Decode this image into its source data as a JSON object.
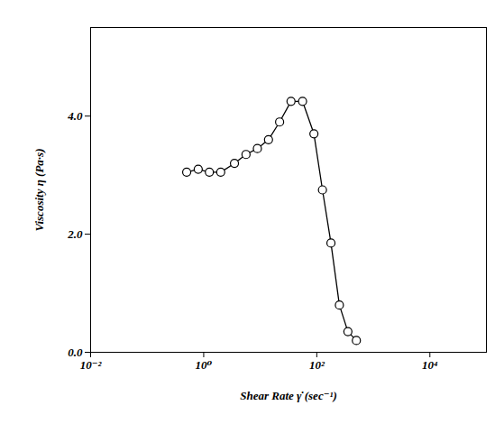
{
  "chart_data": {
    "type": "line",
    "x_label": "Shear Rate γ̇ (sec⁻¹)",
    "y_label": "Viscosity η (Pa·s)",
    "log": "x",
    "xlim": [
      0.01,
      100000
    ],
    "xticks": [
      {
        "value": 0.01,
        "label": "10⁻²"
      },
      {
        "value": 1,
        "label": "10⁰"
      },
      {
        "value": 100,
        "label": "10²"
      },
      {
        "value": 10000,
        "label": "10⁴"
      }
    ],
    "ylim": [
      0,
      5.5
    ],
    "yticks": [
      {
        "value": 0,
        "label": "0.0"
      },
      {
        "value": 2,
        "label": "2.0"
      },
      {
        "value": 4,
        "label": "4.0"
      }
    ],
    "grid": false,
    "x": [
      0.5,
      0.8,
      1.26,
      2.0,
      3.5,
      5.6,
      8.9,
      14,
      22,
      35,
      56,
      89,
      126,
      178,
      251,
      355,
      501
    ],
    "series": [
      {
        "color": "#000000",
        "marker": "circle",
        "line_style": "solid",
        "values": [
          3.05,
          3.1,
          3.05,
          3.05,
          3.2,
          3.35,
          3.45,
          3.6,
          3.9,
          4.25,
          4.25,
          3.7,
          2.75,
          1.85,
          0.8,
          0.35,
          0.2
        ]
      }
    ]
  }
}
